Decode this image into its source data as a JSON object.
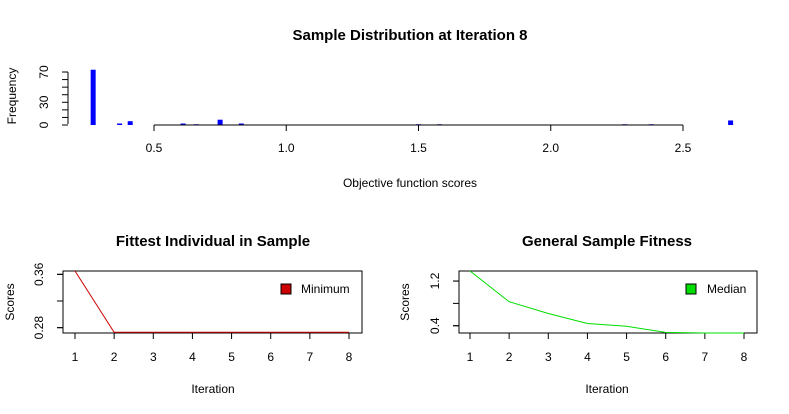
{
  "chart_data": [
    {
      "type": "bar",
      "title": "Sample Distribution at Iteration 8",
      "xlabel": "Objective function scores",
      "ylabel": "Frequency",
      "xlim": [
        0.25,
        2.7
      ],
      "ylim": [
        0,
        70
      ],
      "xticks": [
        "0.5",
        "1.0",
        "1.5",
        "2.0",
        "2.5"
      ],
      "xtick_values": [
        0.5,
        1.0,
        1.5,
        2.0,
        2.5
      ],
      "yticks": [
        "0",
        "30",
        "70"
      ],
      "ytick_values": [
        0,
        30,
        70
      ],
      "bar_color": "#0000ff",
      "bars": [
        {
          "x": 0.27,
          "y": 73
        },
        {
          "x": 0.37,
          "y": 2
        },
        {
          "x": 0.41,
          "y": 5
        },
        {
          "x": 0.61,
          "y": 2
        },
        {
          "x": 0.66,
          "y": 1
        },
        {
          "x": 0.75,
          "y": 7
        },
        {
          "x": 0.83,
          "y": 2
        },
        {
          "x": 1.5,
          "y": 1
        },
        {
          "x": 1.58,
          "y": 1
        },
        {
          "x": 2.28,
          "y": 1
        },
        {
          "x": 2.38,
          "y": 1
        },
        {
          "x": 2.68,
          "y": 6
        }
      ]
    },
    {
      "type": "line",
      "title": "Fittest Individual in Sample",
      "xlabel": "Iteration",
      "ylabel": "Scores",
      "x": [
        1,
        2,
        3,
        4,
        5,
        6,
        7,
        8
      ],
      "xticks": [
        "1",
        "2",
        "3",
        "4",
        "5",
        "6",
        "7",
        "8"
      ],
      "yticks": [
        "0.28",
        "0.36"
      ],
      "ytick_values": [
        0.28,
        0.36
      ],
      "ylim": [
        0.272,
        0.365
      ],
      "series": [
        {
          "name": "Minimum",
          "color": "#cc0000",
          "values": [
            0.365,
            0.273,
            0.273,
            0.273,
            0.273,
            0.273,
            0.273,
            0.273
          ]
        }
      ],
      "legend": "top-right"
    },
    {
      "type": "line",
      "title": "General Sample Fitness",
      "xlabel": "Iteration",
      "ylabel": "Scores",
      "x": [
        1,
        2,
        3,
        4,
        5,
        6,
        7,
        8
      ],
      "xticks": [
        "1",
        "2",
        "3",
        "4",
        "5",
        "6",
        "7",
        "8"
      ],
      "yticks": [
        "0.4",
        "1.2"
      ],
      "ytick_values": [
        0.4,
        1.2
      ],
      "ylim": [
        0.27,
        1.38
      ],
      "series": [
        {
          "name": "Median",
          "color": "#00dd00",
          "values": [
            1.38,
            0.83,
            0.62,
            0.44,
            0.39,
            0.28,
            0.27,
            0.27
          ]
        }
      ],
      "legend": "top-right"
    }
  ]
}
